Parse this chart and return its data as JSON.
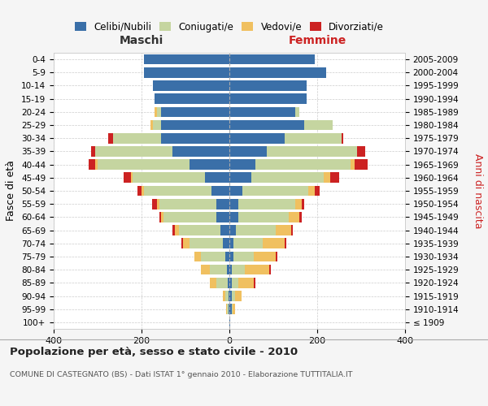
{
  "age_groups": [
    "100+",
    "95-99",
    "90-94",
    "85-89",
    "80-84",
    "75-79",
    "70-74",
    "65-69",
    "60-64",
    "55-59",
    "50-54",
    "45-49",
    "40-44",
    "35-39",
    "30-34",
    "25-29",
    "20-24",
    "15-19",
    "10-14",
    "5-9",
    "0-4"
  ],
  "birth_years": [
    "≤ 1909",
    "1910-1914",
    "1915-1919",
    "1920-1924",
    "1925-1929",
    "1930-1934",
    "1935-1939",
    "1940-1944",
    "1945-1949",
    "1950-1954",
    "1955-1959",
    "1960-1964",
    "1965-1969",
    "1970-1974",
    "1975-1979",
    "1980-1984",
    "1985-1989",
    "1990-1994",
    "1995-1999",
    "2000-2004",
    "2005-2009"
  ],
  "colors": {
    "celibi": "#3a6fa8",
    "coniugati": "#c5d5a0",
    "vedovi": "#f0c060",
    "divorziati": "#cc2222"
  },
  "male": {
    "celibi": [
      0,
      2,
      2,
      4,
      5,
      10,
      15,
      20,
      30,
      30,
      40,
      55,
      90,
      130,
      155,
      155,
      155,
      170,
      175,
      195,
      195
    ],
    "coniugati": [
      0,
      3,
      8,
      25,
      40,
      55,
      75,
      95,
      120,
      130,
      155,
      165,
      210,
      175,
      110,
      20,
      10,
      0,
      0,
      0,
      0
    ],
    "vedovi": [
      0,
      2,
      5,
      15,
      20,
      15,
      15,
      10,
      5,
      5,
      5,
      5,
      5,
      0,
      0,
      5,
      5,
      0,
      0,
      0,
      0
    ],
    "divorziati": [
      0,
      0,
      0,
      0,
      0,
      0,
      5,
      5,
      5,
      10,
      10,
      15,
      15,
      10,
      10,
      0,
      0,
      0,
      0,
      0,
      0
    ]
  },
  "female": {
    "celibi": [
      2,
      5,
      5,
      5,
      5,
      10,
      10,
      15,
      20,
      20,
      30,
      50,
      60,
      85,
      125,
      170,
      150,
      175,
      175,
      220,
      195
    ],
    "coniugati": [
      0,
      3,
      8,
      15,
      30,
      45,
      65,
      90,
      115,
      130,
      150,
      165,
      215,
      205,
      130,
      65,
      10,
      0,
      0,
      0,
      0
    ],
    "vedovi": [
      0,
      5,
      15,
      35,
      55,
      50,
      50,
      35,
      25,
      15,
      15,
      15,
      10,
      0,
      0,
      0,
      0,
      0,
      0,
      0,
      0
    ],
    "divorziati": [
      0,
      0,
      0,
      5,
      5,
      5,
      5,
      5,
      5,
      5,
      10,
      20,
      30,
      20,
      5,
      0,
      0,
      0,
      0,
      0,
      0
    ]
  },
  "title": "Popolazione per età, sesso e stato civile - 2010",
  "subtitle": "COMUNE DI CASTEGNATO (BS) - Dati ISTAT 1° gennaio 2010 - Elaborazione TUTTITALIA.IT",
  "xlabel_left": "Maschi",
  "xlabel_right": "Femmine",
  "ylabel_left": "Fasce di età",
  "ylabel_right": "Anni di nascita",
  "xlim": 400,
  "legend_labels": [
    "Celibi/Nubili",
    "Coniugati/e",
    "Vedovi/e",
    "Divorziati/e"
  ],
  "bg_color": "#f5f5f5",
  "plot_bg": "#ffffff"
}
